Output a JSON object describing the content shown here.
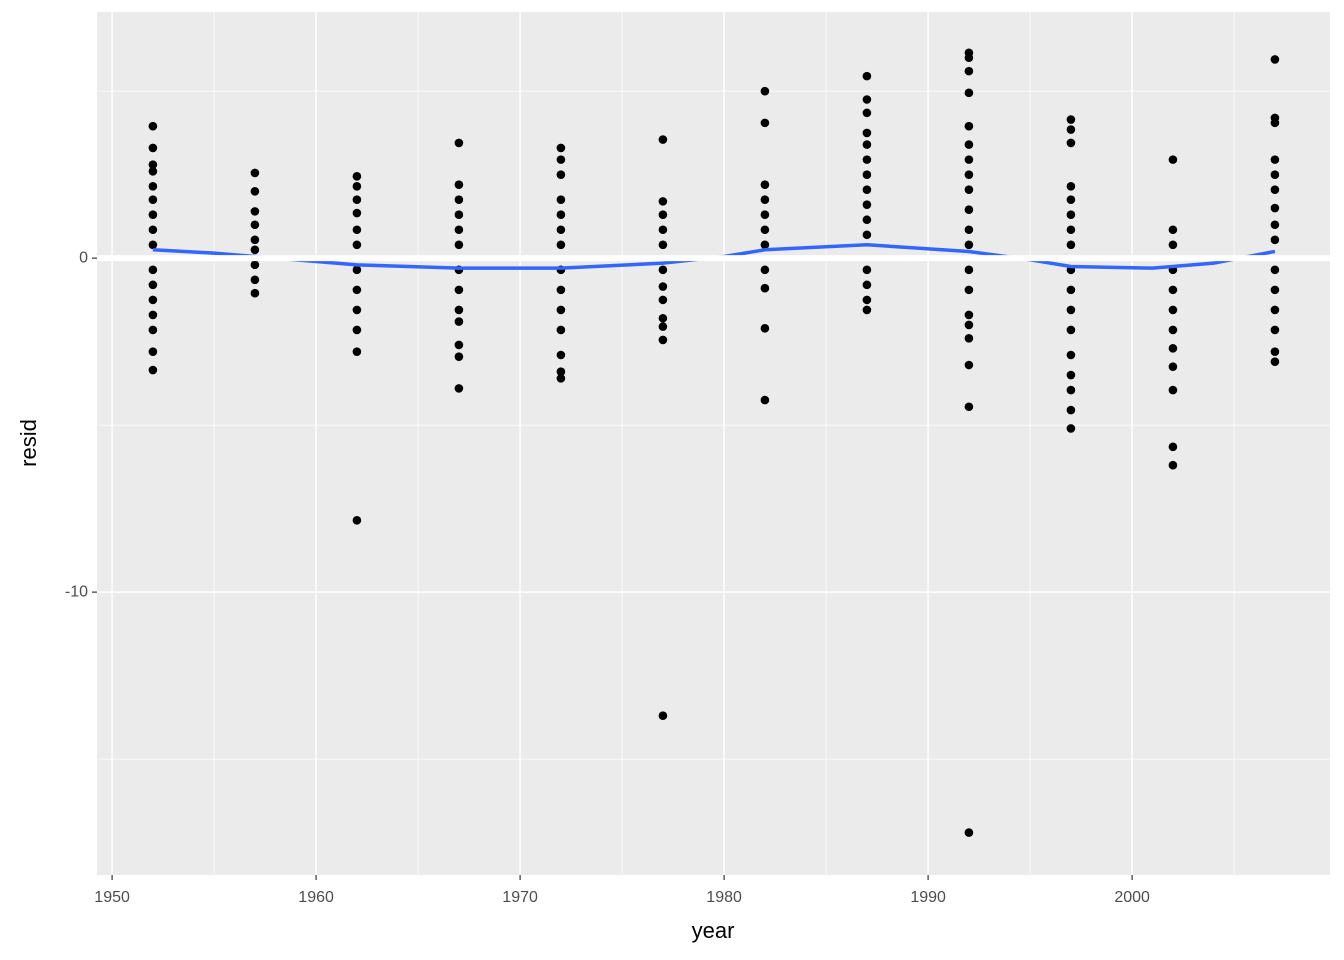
{
  "chart_data": {
    "type": "scatter",
    "x_label": "year",
    "y_label": "resid",
    "xlim": [
      1949.26,
      2009.7
    ],
    "ylim": [
      -18.47,
      7.37
    ],
    "xticks": [
      1950,
      1960,
      1970,
      1980,
      1990,
      2000
    ],
    "xminor": [
      1955,
      1965,
      1975,
      1985,
      1995,
      2005
    ],
    "yticks": [
      -10,
      0
    ],
    "yminor": [
      -15,
      -5,
      5
    ],
    "grid": true,
    "point_color": "#000000",
    "hline": 0,
    "hline_color": "#ffffff",
    "points": [
      {
        "x": 1952,
        "values": [
          3.95,
          3.3,
          2.8,
          2.6,
          2.15,
          1.75,
          1.3,
          0.85,
          0.4,
          -0.35,
          -0.8,
          -1.25,
          -1.7,
          -2.15,
          -2.8,
          -3.35
        ]
      },
      {
        "x": 1957,
        "values": [
          2.55,
          2.0,
          1.4,
          1.0,
          0.55,
          0.25,
          -0.2,
          -0.65,
          -1.05
        ]
      },
      {
        "x": 1962,
        "values": [
          2.45,
          2.15,
          1.75,
          1.35,
          0.85,
          0.4,
          -0.35,
          -0.95,
          -1.55,
          -2.15,
          -2.8,
          -7.85
        ]
      },
      {
        "x": 1967,
        "values": [
          3.45,
          2.2,
          1.75,
          1.3,
          0.85,
          0.4,
          -0.35,
          -0.95,
          -1.55,
          -1.9,
          -2.6,
          -2.95,
          -3.9
        ]
      },
      {
        "x": 1972,
        "values": [
          3.3,
          2.95,
          2.5,
          1.75,
          1.3,
          0.85,
          0.4,
          -0.35,
          -0.95,
          -1.55,
          -2.15,
          -2.9,
          -3.4,
          -3.6
        ]
      },
      {
        "x": 1977,
        "values": [
          3.55,
          1.7,
          1.3,
          0.85,
          0.4,
          -0.35,
          -0.85,
          -1.25,
          -1.8,
          -2.05,
          -2.45,
          -13.7
        ]
      },
      {
        "x": 1982,
        "values": [
          5.0,
          4.05,
          2.2,
          1.75,
          1.3,
          0.85,
          0.4,
          -0.35,
          -0.9,
          -2.1,
          -4.25
        ]
      },
      {
        "x": 1987,
        "values": [
          5.45,
          4.75,
          4.35,
          3.75,
          3.4,
          2.95,
          2.5,
          2.05,
          1.6,
          1.15,
          0.7,
          -0.35,
          -0.8,
          -1.25,
          -1.55
        ]
      },
      {
        "x": 1992,
        "values": [
          6.15,
          6.0,
          5.6,
          4.95,
          3.95,
          3.4,
          2.95,
          2.5,
          2.05,
          1.45,
          0.85,
          0.4,
          -0.35,
          -0.95,
          -1.7,
          -2.0,
          -2.4,
          -3.2,
          -4.45,
          -17.2
        ]
      },
      {
        "x": 1997,
        "values": [
          4.15,
          3.85,
          3.45,
          2.15,
          1.75,
          1.3,
          0.85,
          0.4,
          -0.35,
          -0.95,
          -1.55,
          -2.15,
          -2.9,
          -3.5,
          -3.95,
          -4.55,
          -5.1
        ]
      },
      {
        "x": 2002,
        "values": [
          2.95,
          0.85,
          0.4,
          -0.35,
          -0.95,
          -1.55,
          -2.15,
          -2.7,
          -3.25,
          -3.95,
          -5.65,
          -6.2
        ]
      },
      {
        "x": 2007,
        "values": [
          5.95,
          4.2,
          4.05,
          2.95,
          2.5,
          2.05,
          1.5,
          1.0,
          0.55,
          -0.35,
          -0.95,
          -1.55,
          -2.15,
          -2.8,
          -3.1
        ]
      }
    ],
    "smooth": {
      "color": "#3366ff",
      "x": [
        1952,
        1955,
        1958,
        1962,
        1967,
        1972,
        1977,
        1980,
        1982,
        1987,
        1992,
        1995,
        1997,
        2001,
        2004,
        2007
      ],
      "values": [
        0.25,
        0.15,
        0.0,
        -0.2,
        -0.3,
        -0.3,
        -0.15,
        0.05,
        0.25,
        0.4,
        0.2,
        -0.05,
        -0.25,
        -0.3,
        -0.15,
        0.2
      ]
    }
  }
}
